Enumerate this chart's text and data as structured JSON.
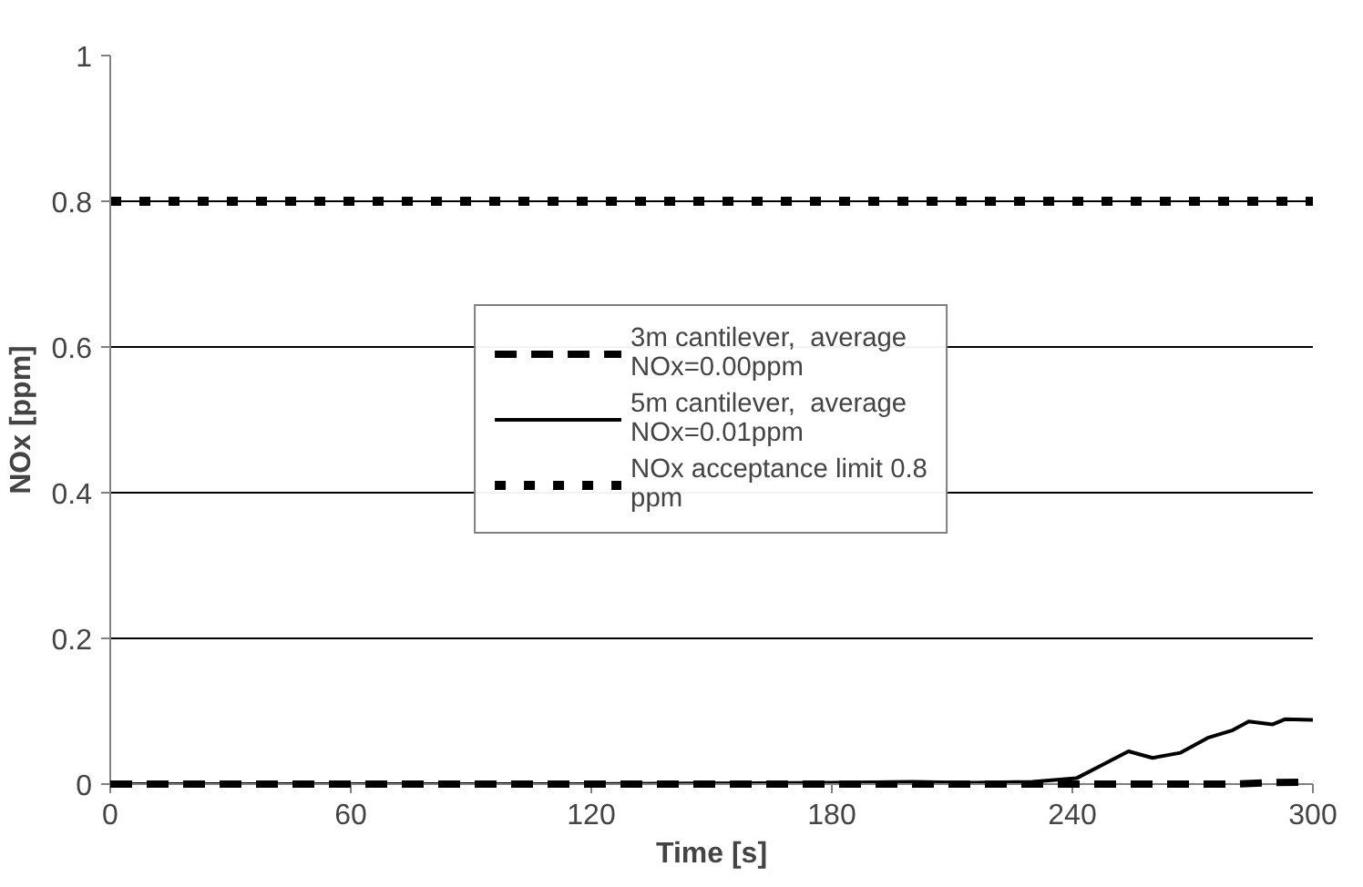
{
  "chart_data": {
    "type": "line",
    "xlabel": "Time [s]",
    "ylabel": "NOx [ppm]",
    "xlim": [
      0,
      300
    ],
    "ylim": [
      0,
      1
    ],
    "xticks": [
      0,
      60,
      120,
      180,
      240,
      300
    ],
    "yticks": [
      0,
      0.2,
      0.4,
      0.6,
      0.8,
      1
    ],
    "grid": "y",
    "legend": "center",
    "series": [
      {
        "name": "3m cantilever,  average NOx=0.00ppm",
        "color": "#000000",
        "line_style": "dashed",
        "x": [
          0,
          60,
          120,
          180,
          240,
          280,
          290,
          300
        ],
        "values": [
          0,
          0,
          0,
          0,
          0,
          0,
          0.002,
          0.003
        ]
      },
      {
        "name": "5m cantilever,  average NOx=0.01ppm",
        "color": "#000000",
        "line_style": "solid",
        "x": [
          0,
          60,
          120,
          150,
          180,
          200,
          215,
          230,
          241,
          247,
          254,
          260,
          267,
          274,
          280,
          284,
          290,
          293,
          300
        ],
        "values": [
          0,
          0,
          0,
          0.001,
          0.002,
          0.003,
          0.002,
          0.003,
          0.008,
          0.025,
          0.045,
          0.036,
          0.043,
          0.064,
          0.074,
          0.086,
          0.082,
          0.089,
          0.088
        ]
      }
    ],
    "ref_lines": [
      {
        "axis": "y",
        "value": 0.8,
        "label": "NOx acceptance limit 0.8 ppm",
        "color": "#000000",
        "line_style": "dotted"
      }
    ]
  }
}
